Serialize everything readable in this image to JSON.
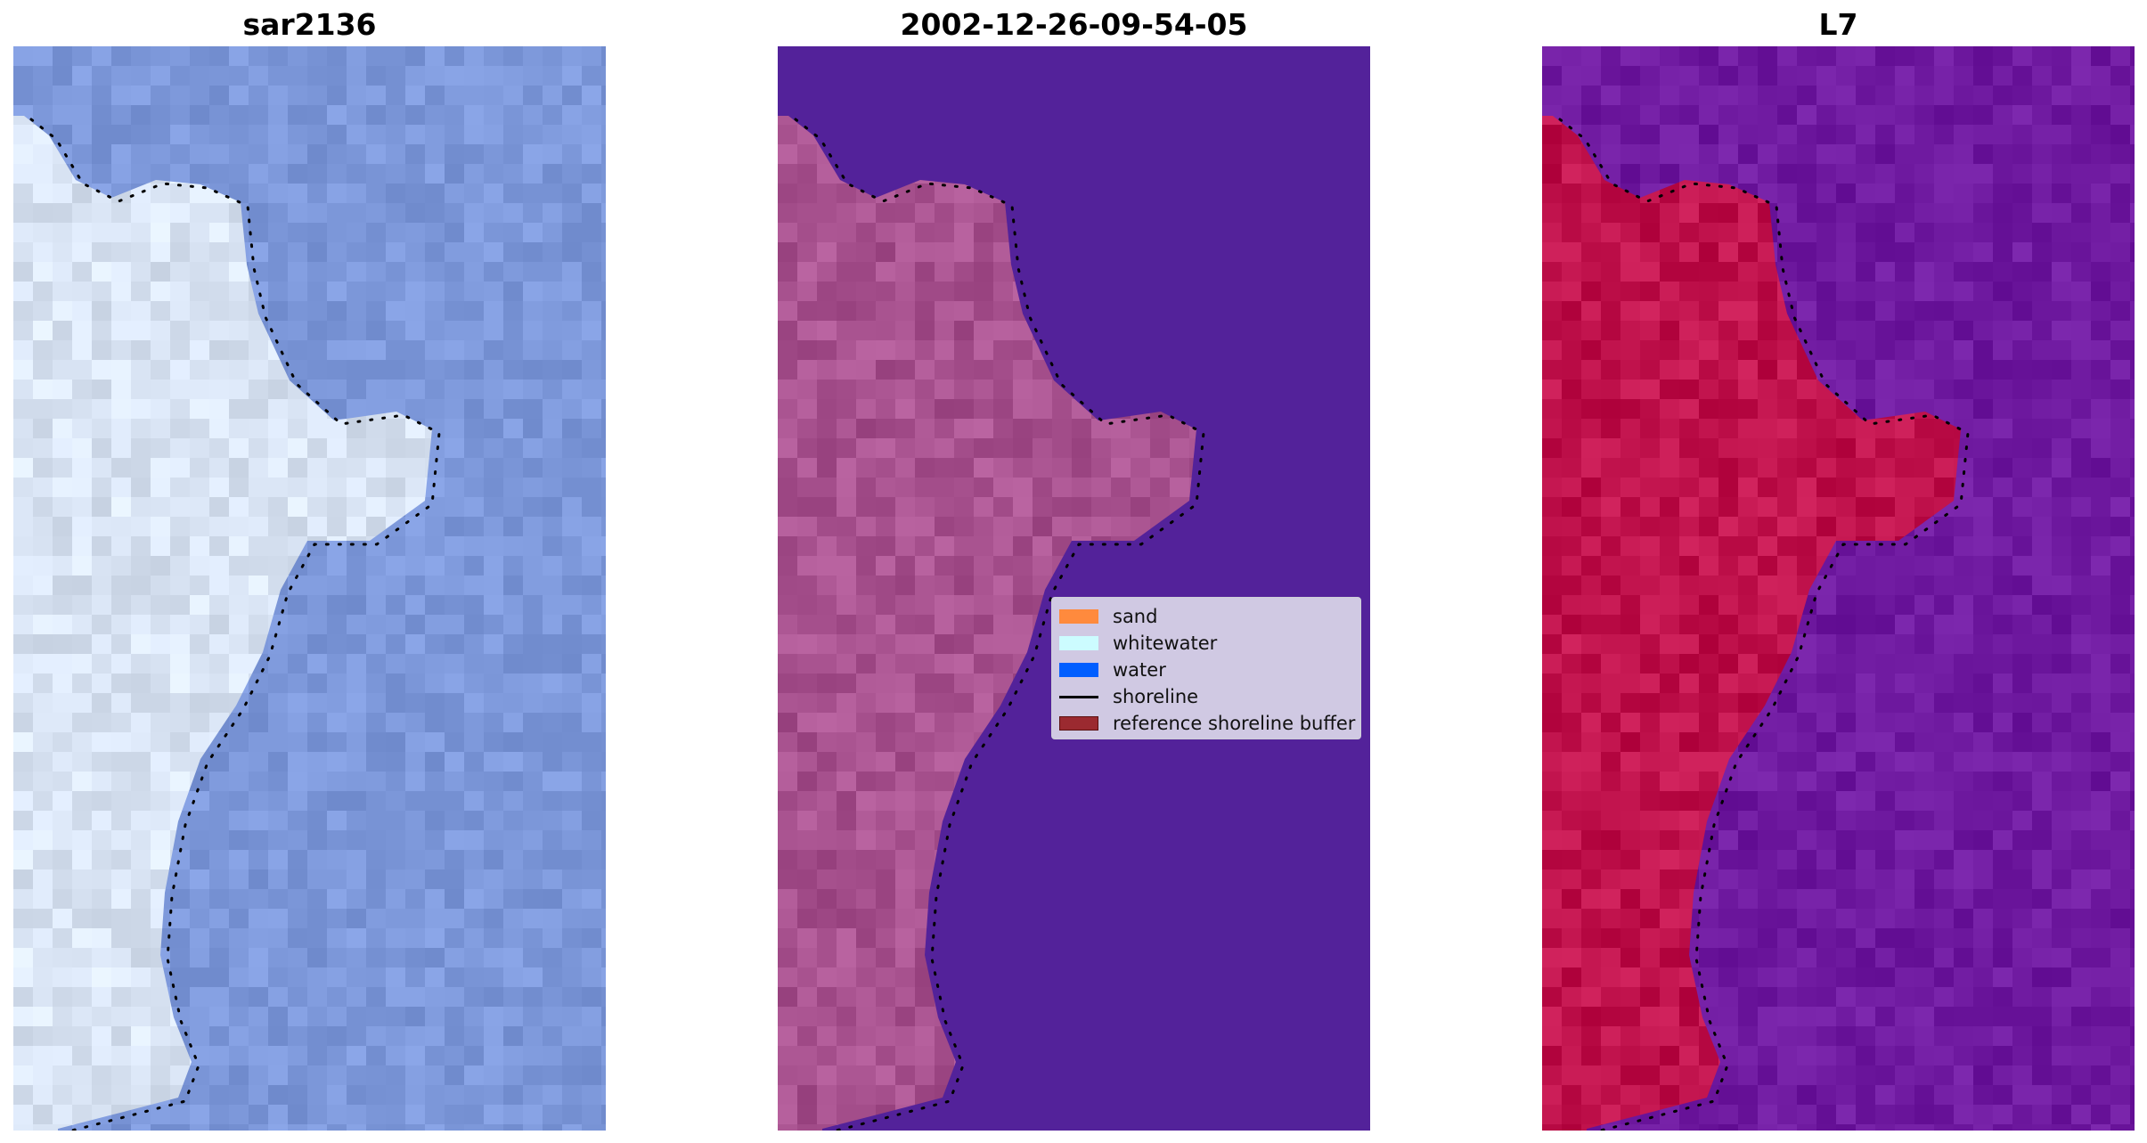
{
  "panels": [
    {
      "title": "sar2136",
      "kind": "rgb-image",
      "base_color": "#7d98da",
      "land_color": "#d9e4f4"
    },
    {
      "title": "2002-12-26-09-54-05",
      "kind": "classified-image",
      "base_color": "#53229a",
      "land_color": "#a8528f"
    },
    {
      "title": "L7",
      "kind": "index-image",
      "base_color": "#6f1aa0",
      "land_color": "#c0124c"
    }
  ],
  "legend": {
    "items": [
      {
        "label": "sand",
        "color": "#ff8a3d",
        "kind": "patch"
      },
      {
        "label": "whitewater",
        "color": "#ccfcff",
        "kind": "patch"
      },
      {
        "label": "water",
        "color": "#005eff",
        "kind": "patch"
      },
      {
        "label": "shoreline",
        "color": "#000000",
        "kind": "line"
      },
      {
        "label": "reference shoreline buffer",
        "color": "#9b2a30",
        "kind": "patch"
      }
    ]
  },
  "shoreline": {
    "style": "dotted",
    "color": "#000000"
  }
}
